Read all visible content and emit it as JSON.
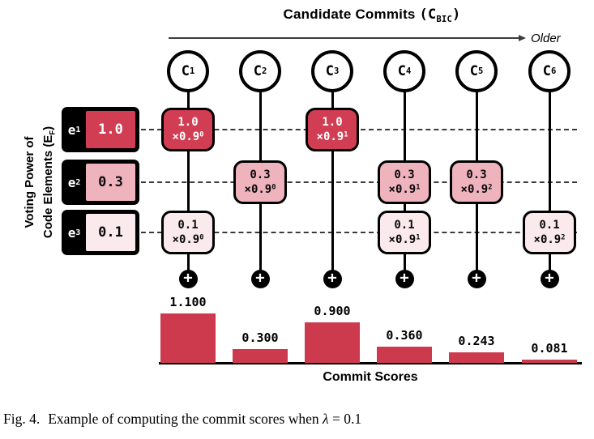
{
  "figure": {
    "header": {
      "title_text": "Candidate Commits ",
      "title_symbol": "(C",
      "title_subscript": "BIC",
      "title_suffix": ")",
      "direction_label": "Older"
    },
    "left_axis": {
      "line1": "Voting Power of",
      "line2_prefix": "Code Elements (E",
      "line2_subscript": "F",
      "line2_suffix": ")"
    },
    "elements": [
      {
        "name": "e",
        "subscript": "1",
        "value": "1.0",
        "color": "#d13e54",
        "text_color": "#ffffff"
      },
      {
        "name": "e",
        "subscript": "2",
        "value": "0.3",
        "color": "#efb3be",
        "text_color": "#0a0a0a"
      },
      {
        "name": "e",
        "subscript": "3",
        "value": "0.1",
        "color": "#faeaed",
        "text_color": "#0a0a0a"
      }
    ],
    "commits": [
      {
        "name": "C",
        "subscript": "1"
      },
      {
        "name": "C",
        "subscript": "2"
      },
      {
        "name": "C",
        "subscript": "3"
      },
      {
        "name": "C",
        "subscript": "4"
      },
      {
        "name": "C",
        "subscript": "5"
      },
      {
        "name": "C",
        "subscript": "6"
      }
    ],
    "cells": [
      {
        "col": 0,
        "row": 0,
        "value": "1.0",
        "multiplier": "×0.9",
        "exponent": "0"
      },
      {
        "col": 2,
        "row": 0,
        "value": "1.0",
        "multiplier": "×0.9",
        "exponent": "1"
      },
      {
        "col": 1,
        "row": 1,
        "value": "0.3",
        "multiplier": "×0.9",
        "exponent": "0"
      },
      {
        "col": 3,
        "row": 1,
        "value": "0.3",
        "multiplier": "×0.9",
        "exponent": "1"
      },
      {
        "col": 4,
        "row": 1,
        "value": "0.3",
        "multiplier": "×0.9",
        "exponent": "2"
      },
      {
        "col": 0,
        "row": 2,
        "value": "0.1",
        "multiplier": "×0.9",
        "exponent": "0"
      },
      {
        "col": 3,
        "row": 2,
        "value": "0.1",
        "multiplier": "×0.9",
        "exponent": "1"
      },
      {
        "col": 5,
        "row": 2,
        "value": "0.1",
        "multiplier": "×0.9",
        "exponent": "2"
      }
    ],
    "sum_symbol": "+"
  },
  "chart_data": {
    "type": "bar",
    "categories": [
      "C1",
      "C2",
      "C3",
      "C4",
      "C5",
      "C6"
    ],
    "values": [
      1.1,
      0.3,
      0.9,
      0.36,
      0.243,
      0.081
    ],
    "value_labels": [
      "1.100",
      "0.300",
      "0.900",
      "0.360",
      "0.243",
      "0.081"
    ],
    "title": "",
    "xlabel": "Commit Scores",
    "ylabel": "",
    "ylim": [
      0,
      1.2
    ],
    "bar_color": "#cd3a4e",
    "grid": false,
    "legend": "none"
  },
  "caption": {
    "fig_label": "Fig. 4.",
    "text": "Example of computing the commit scores when",
    "math_symbol": "λ",
    "math_rest": " = 0.1"
  },
  "colors": {
    "accent_red": "#d13e54",
    "bar_red": "#cd3a4e",
    "pink": "#efb3be",
    "light_pink": "#faeaed",
    "ink": "#000000"
  }
}
